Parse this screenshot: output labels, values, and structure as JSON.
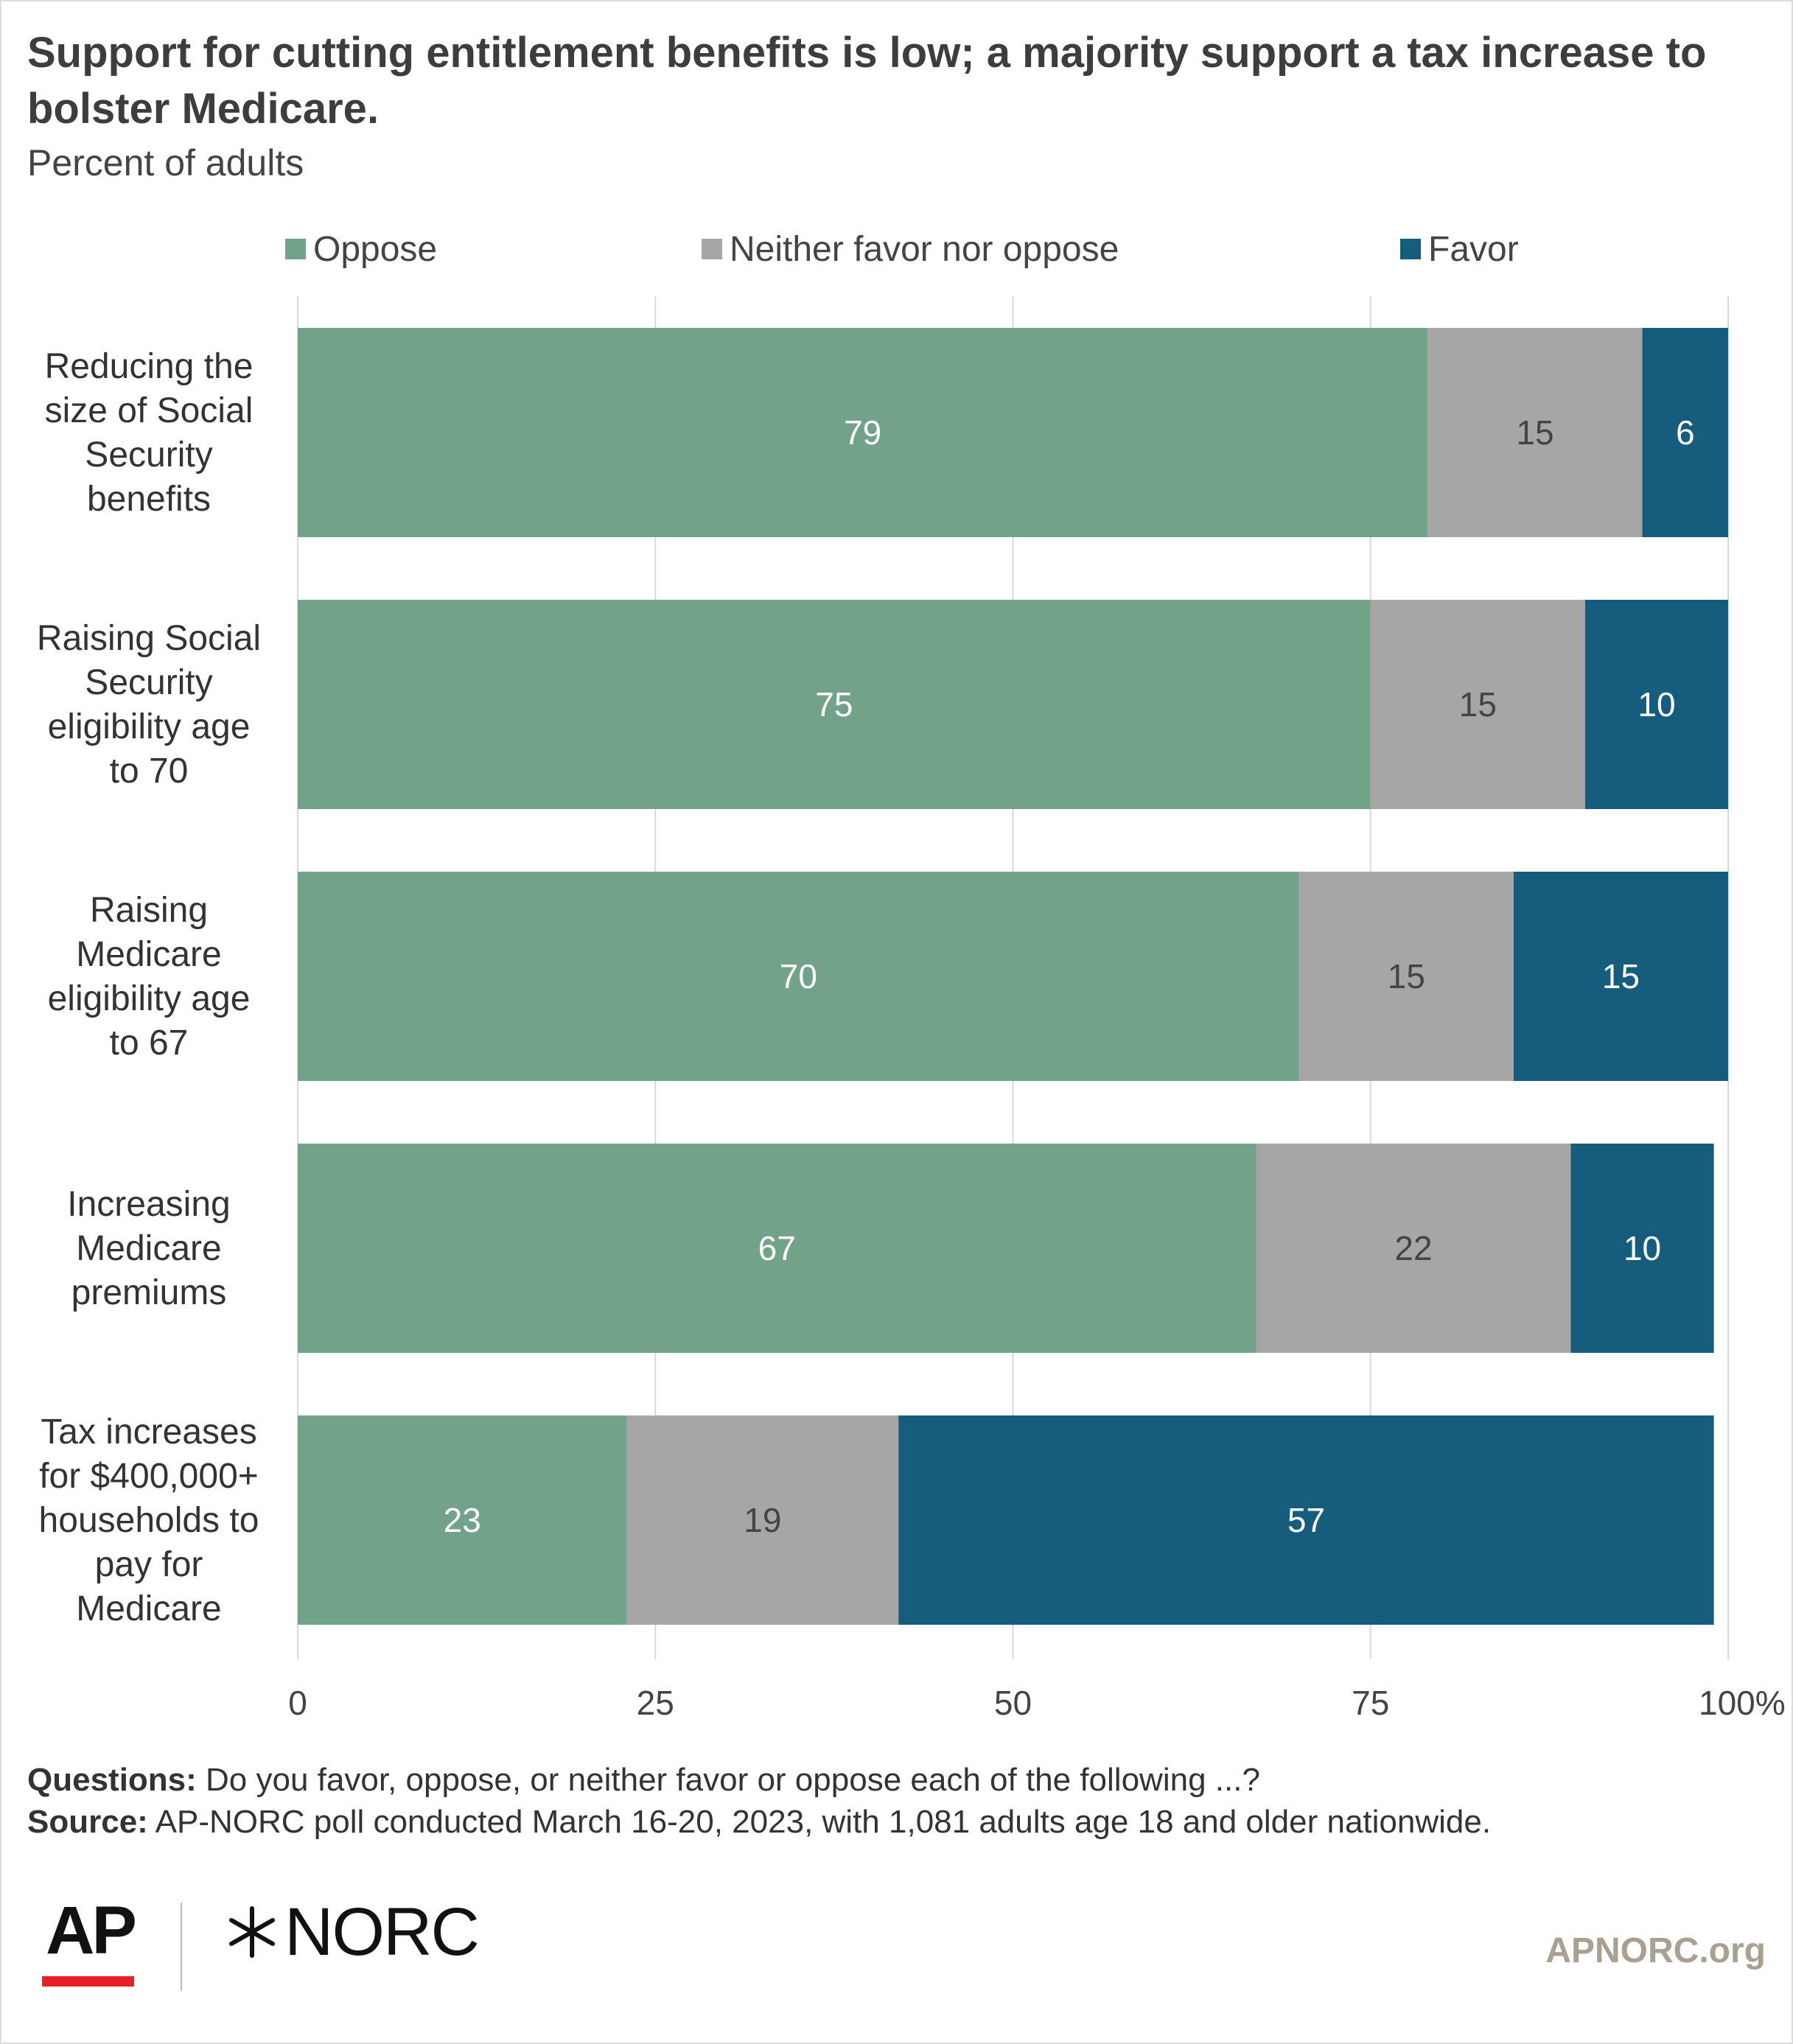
{
  "chart_data": {
    "type": "bar",
    "orientation": "horizontal",
    "stacked": true,
    "title": "Support for cutting entitlement benefits is low; a majority support a tax increase to bolster Medicare.",
    "subtitle": "Percent of adults",
    "categories": [
      "Reducing the size of Social Security benefits",
      "Raising Social Security eligibility age to 70",
      "Raising Medicare eligibility age to 67",
      "Increasing Medicare premiums",
      "Tax increases for $400,000+ households to pay for Medicare"
    ],
    "category_lines": [
      [
        "Reducing the",
        "size of Social",
        "Security",
        "benefits"
      ],
      [
        "Raising Social",
        "Security",
        "eligibility age",
        "to 70"
      ],
      [
        "Raising",
        "Medicare",
        "eligibility age",
        "to 67"
      ],
      [
        "Increasing",
        "Medicare",
        "premiums"
      ],
      [
        "Tax increases",
        "for $400,000+",
        "households to",
        "pay for",
        "Medicare"
      ]
    ],
    "series": [
      {
        "name": "Oppose",
        "color": "#72a389",
        "label_color": "#ffffff",
        "values": [
          79,
          75,
          70,
          67,
          23
        ]
      },
      {
        "name": "Neither favor nor oppose",
        "color": "#a6a6a6",
        "label_color": "#444444",
        "values": [
          15,
          15,
          15,
          22,
          19
        ]
      },
      {
        "name": "Favor",
        "color": "#165c7d",
        "label_color": "#ffffff",
        "values": [
          6,
          10,
          15,
          10,
          57
        ]
      }
    ],
    "xlim": [
      0,
      100
    ],
    "xticks": [
      0,
      25,
      50,
      75,
      100
    ],
    "xtick_labels": [
      "0",
      "25",
      "50",
      "75",
      "100%"
    ],
    "grid": true,
    "legend_position": "top"
  },
  "footer": {
    "questions_label": "Questions:",
    "questions_text": "Do you favor, oppose, or neither favor or oppose each of the following ...?",
    "source_label": "Source:",
    "source_text": "AP-NORC poll conducted March 16-20, 2023, with 1,081 adults age 18 and older nationwide."
  },
  "branding": {
    "ap": "AP",
    "norc": "NORC",
    "site": "APNORC.org"
  }
}
